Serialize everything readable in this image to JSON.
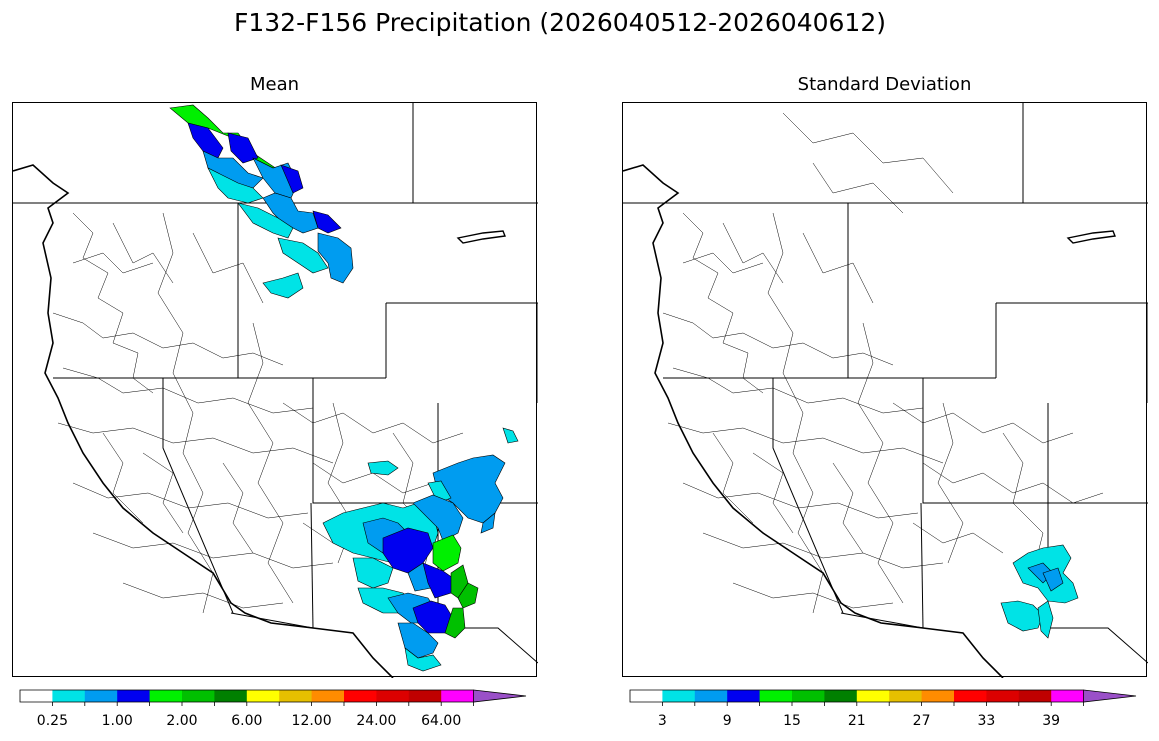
{
  "figure": {
    "title": "F132-F156 Precipitation (2026040512-2026040612)"
  },
  "panels": [
    {
      "id": "mean",
      "title": "Mean",
      "colorbar": {
        "colors": [
          "#ffffff",
          "#00e3e6",
          "#009cf0",
          "#0000f0",
          "#00f000",
          "#00c000",
          "#008000",
          "#ffff00",
          "#e6c000",
          "#ff8c00",
          "#ff0000",
          "#dc0000",
          "#c00000",
          "#ff00ff",
          "#9a50c8"
        ],
        "extend": "max",
        "tick_labels": [
          "0.25",
          "1.00",
          "2.00",
          "6.00",
          "12.00",
          "24.00",
          "64.00"
        ]
      }
    },
    {
      "id": "std",
      "title": "Standard Deviation",
      "colorbar": {
        "colors": [
          "#ffffff",
          "#00e3e6",
          "#009cf0",
          "#0000f0",
          "#00f000",
          "#00c000",
          "#008000",
          "#ffff00",
          "#e6c000",
          "#ff8c00",
          "#ff0000",
          "#dc0000",
          "#c00000",
          "#ff00ff",
          "#9a50c8"
        ],
        "extend": "max",
        "tick_labels": [
          "3",
          "9",
          "15",
          "21",
          "27",
          "33",
          "39"
        ]
      }
    }
  ]
}
